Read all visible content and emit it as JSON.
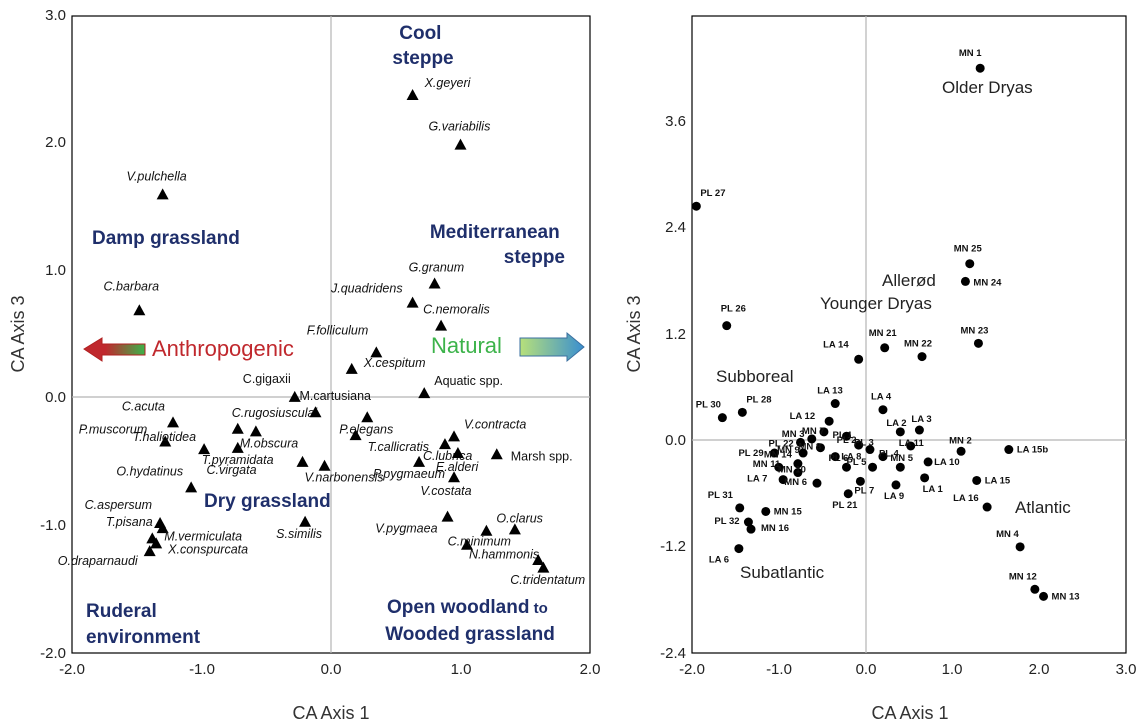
{
  "chart_data": [
    {
      "type": "scatter",
      "xlabel": "CA Axis 1",
      "ylabel": "CA Axis 3",
      "xlim": [
        -2.0,
        2.0
      ],
      "ylim": [
        -2.0,
        3.0
      ],
      "xticks": [
        "-2.0",
        "-1.0",
        "0.0",
        "1.0",
        "2.0"
      ],
      "yticks": [
        "-2.0",
        "-1.0",
        "0.0",
        "1.0",
        "2.0",
        "3.0"
      ],
      "marker": "triangle",
      "points": [
        {
          "label": "X.geyeri",
          "x": 0.63,
          "y": 2.38
        },
        {
          "label": "G.variabilis",
          "x": 1.0,
          "y": 1.99
        },
        {
          "label": "V.pulchella",
          "x": -1.3,
          "y": 1.6
        },
        {
          "label": "C.barbara",
          "x": -1.48,
          "y": 0.69
        },
        {
          "label": "G.granum",
          "x": 0.8,
          "y": 0.9
        },
        {
          "label": "J.quadridens",
          "x": 0.63,
          "y": 0.75
        },
        {
          "label": "C.nemoralis",
          "x": 0.85,
          "y": 0.57
        },
        {
          "label": "F.folliculum",
          "x": 0.35,
          "y": 0.36
        },
        {
          "label": "X.cespitum",
          "x": 0.16,
          "y": 0.23
        },
        {
          "label": "Aquatic spp.",
          "x": 0.72,
          "y": 0.04
        },
        {
          "label": "C.gigaxii",
          "x": -0.28,
          "y": 0.01
        },
        {
          "label": "C.acuta",
          "x": -1.22,
          "y": -0.19
        },
        {
          "label": "C.rugosiusculai",
          "x": -0.72,
          "y": -0.24
        },
        {
          "label": "M.obscura",
          "x": -0.58,
          "y": -0.26
        },
        {
          "label": "M.cartusiana",
          "x": -0.12,
          "y": -0.11
        },
        {
          "label": "P.elegans",
          "x": 0.28,
          "y": -0.15
        },
        {
          "label": "P.muscorum",
          "x": -1.28,
          "y": -0.34
        },
        {
          "label": "T.haliotidea",
          "x": -0.98,
          "y": -0.4
        },
        {
          "label": "T.pyramidata",
          "x": -0.72,
          "y": -0.39
        },
        {
          "label": "C.virgata",
          "x": -0.22,
          "y": -0.5
        },
        {
          "label": "V.narbonensis",
          "x": -0.05,
          "y": -0.53
        },
        {
          "label": "T.callicratis",
          "x": 0.19,
          "y": -0.29
        },
        {
          "label": "V.contracta",
          "x": 0.95,
          "y": -0.3
        },
        {
          "label": "C.lubrica",
          "x": 0.88,
          "y": -0.36
        },
        {
          "label": "E.alderi",
          "x": 0.98,
          "y": -0.43
        },
        {
          "label": "Marsh spp.",
          "x": 1.28,
          "y": -0.44
        },
        {
          "label": "P.pygmaeum",
          "x": 0.68,
          "y": -0.5
        },
        {
          "label": "V.costata",
          "x": 0.95,
          "y": -0.62
        },
        {
          "label": "O.hydatinus",
          "x": -1.08,
          "y": -0.7
        },
        {
          "label": "C.aspersum",
          "x": -1.32,
          "y": -0.98
        },
        {
          "label": "T.pisana",
          "x": -1.3,
          "y": -1.02
        },
        {
          "label": "M.vermiculata",
          "x": -1.38,
          "y": -1.1
        },
        {
          "label": "X.conspurcata",
          "x": -1.35,
          "y": -1.14
        },
        {
          "label": "O.draparnaudi",
          "x": -1.4,
          "y": -1.2
        },
        {
          "label": "S.similis",
          "x": -0.2,
          "y": -0.97
        },
        {
          "label": "V.pygmaea",
          "x": 0.9,
          "y": -0.93
        },
        {
          "label": "N.hammonis",
          "x": 1.05,
          "y": -1.15
        },
        {
          "label": "O.clarus",
          "x": 1.2,
          "y": -1.04
        },
        {
          "label": "C.minimum",
          "x": 1.42,
          "y": -1.03
        },
        {
          "label": "C.tridentatum",
          "x": 1.6,
          "y": -1.27
        },
        {
          "label": "",
          "x": 1.64,
          "y": -1.33
        }
      ],
      "regions": [
        "Cool steppe",
        "Damp grassland",
        "Mediterranean steppe",
        "Dry grassland",
        "Ruderal environment",
        "Open woodland to Wooded grassland"
      ],
      "gradient": {
        "left": "Anthropogenic",
        "right": "Natural",
        "left_color": "#c0282d",
        "right_color": "#3cb34a"
      }
    },
    {
      "type": "scatter",
      "xlabel": "CA Axis 1",
      "ylabel": "CA Axis 3",
      "xlim": [
        -2.0,
        3.0
      ],
      "ylim": [
        -2.4,
        4.8
      ],
      "xticks": [
        "-2.0",
        "-1.0",
        "0.0",
        "1.0",
        "2.0",
        "3.0"
      ],
      "yticks": [
        "-2.4",
        "-1.2",
        "0.0",
        "1.2",
        "2.4",
        "3.6"
      ],
      "marker": "circle",
      "points": [
        {
          "label": "MN 1",
          "x": 1.32,
          "y": 4.21
        },
        {
          "label": "PL 27",
          "x": -1.95,
          "y": 2.65
        },
        {
          "label": "MN 25",
          "x": 1.2,
          "y": 2.0
        },
        {
          "label": "MN 24",
          "x": 1.15,
          "y": 1.8
        },
        {
          "label": "PL 26",
          "x": -1.6,
          "y": 1.3
        },
        {
          "label": "MN 23",
          "x": 1.3,
          "y": 1.1
        },
        {
          "label": "MN 21",
          "x": 0.22,
          "y": 1.05
        },
        {
          "label": "MN 22",
          "x": 0.65,
          "y": 0.95
        },
        {
          "label": "LA 14",
          "x": -0.08,
          "y": 0.92
        },
        {
          "label": "LA 13",
          "x": -0.35,
          "y": 0.42
        },
        {
          "label": "LA 4",
          "x": 0.2,
          "y": 0.35
        },
        {
          "label": "PL 30",
          "x": -1.65,
          "y": 0.26
        },
        {
          "label": "PL 28",
          "x": -1.42,
          "y": 0.32
        },
        {
          "label": "LA 12",
          "x": -0.42,
          "y": 0.22
        },
        {
          "label": "LA 2",
          "x": 0.4,
          "y": 0.1
        },
        {
          "label": "LA 3",
          "x": 0.62,
          "y": 0.12
        },
        {
          "label": "PL 1",
          "x": -0.22,
          "y": 0.05
        },
        {
          "label": "MN 7",
          "x": -0.48,
          "y": 0.1
        },
        {
          "label": "MN 3",
          "x": -0.62,
          "y": 0.02
        },
        {
          "label": "PL 22",
          "x": -0.75,
          "y": -0.02
        },
        {
          "label": "MN 8",
          "x": -0.52,
          "y": -0.08
        },
        {
          "label": "PL 2",
          "x": -0.08,
          "y": -0.05
        },
        {
          "label": "PL 3",
          "x": 0.05,
          "y": -0.1
        },
        {
          "label": "LA 11",
          "x": 0.52,
          "y": -0.06
        },
        {
          "label": "MN 2",
          "x": 1.1,
          "y": -0.12
        },
        {
          "label": "LA 15b",
          "x": 1.65,
          "y": -0.1
        },
        {
          "label": "PL 29",
          "x": -1.05,
          "y": -0.14
        },
        {
          "label": "MN 9",
          "x": -0.72,
          "y": -0.14
        },
        {
          "label": "LA 8",
          "x": -0.35,
          "y": -0.18
        },
        {
          "label": "PL 4",
          "x": 0.2,
          "y": -0.18
        },
        {
          "label": "MN 14",
          "x": -0.78,
          "y": -0.26
        },
        {
          "label": "PL 6",
          "x": -0.22,
          "y": -0.3
        },
        {
          "label": "PL 5",
          "x": 0.08,
          "y": -0.3
        },
        {
          "label": "MN 5",
          "x": 0.4,
          "y": -0.3
        },
        {
          "label": "LA 10",
          "x": 0.72,
          "y": -0.24
        },
        {
          "label": "MN 11",
          "x": -1.0,
          "y": -0.3
        },
        {
          "label": "MN 10",
          "x": -0.78,
          "y": -0.36
        },
        {
          "label": "LA 7",
          "x": -0.95,
          "y": -0.44
        },
        {
          "label": "MN 6",
          "x": -0.56,
          "y": -0.48
        },
        {
          "label": "PL 7",
          "x": -0.06,
          "y": -0.46
        },
        {
          "label": "LA 9",
          "x": 0.35,
          "y": -0.5
        },
        {
          "label": "LA 1",
          "x": 0.68,
          "y": -0.42
        },
        {
          "label": "LA 15",
          "x": 1.28,
          "y": -0.45
        },
        {
          "label": "LA 16",
          "x": 1.4,
          "y": -0.75
        },
        {
          "label": "PL 21",
          "x": -0.2,
          "y": -0.6
        },
        {
          "label": "PL 31",
          "x": -1.45,
          "y": -0.76
        },
        {
          "label": "MN 15",
          "x": -1.15,
          "y": -0.8
        },
        {
          "label": "PL 32",
          "x": -1.35,
          "y": -0.92
        },
        {
          "label": "MN 16",
          "x": -1.32,
          "y": -1.0
        },
        {
          "label": "LA 6",
          "x": -1.46,
          "y": -1.22
        },
        {
          "label": "MN 4",
          "x": 1.78,
          "y": -1.2
        },
        {
          "label": "MN 12",
          "x": 1.95,
          "y": -1.68
        },
        {
          "label": "MN 13",
          "x": 2.05,
          "y": -1.76
        }
      ],
      "periods": [
        "Older Dryas",
        "Allerød",
        "Younger Dryas",
        "Subboreal",
        "Atlantic",
        "Subatlantic"
      ]
    }
  ]
}
